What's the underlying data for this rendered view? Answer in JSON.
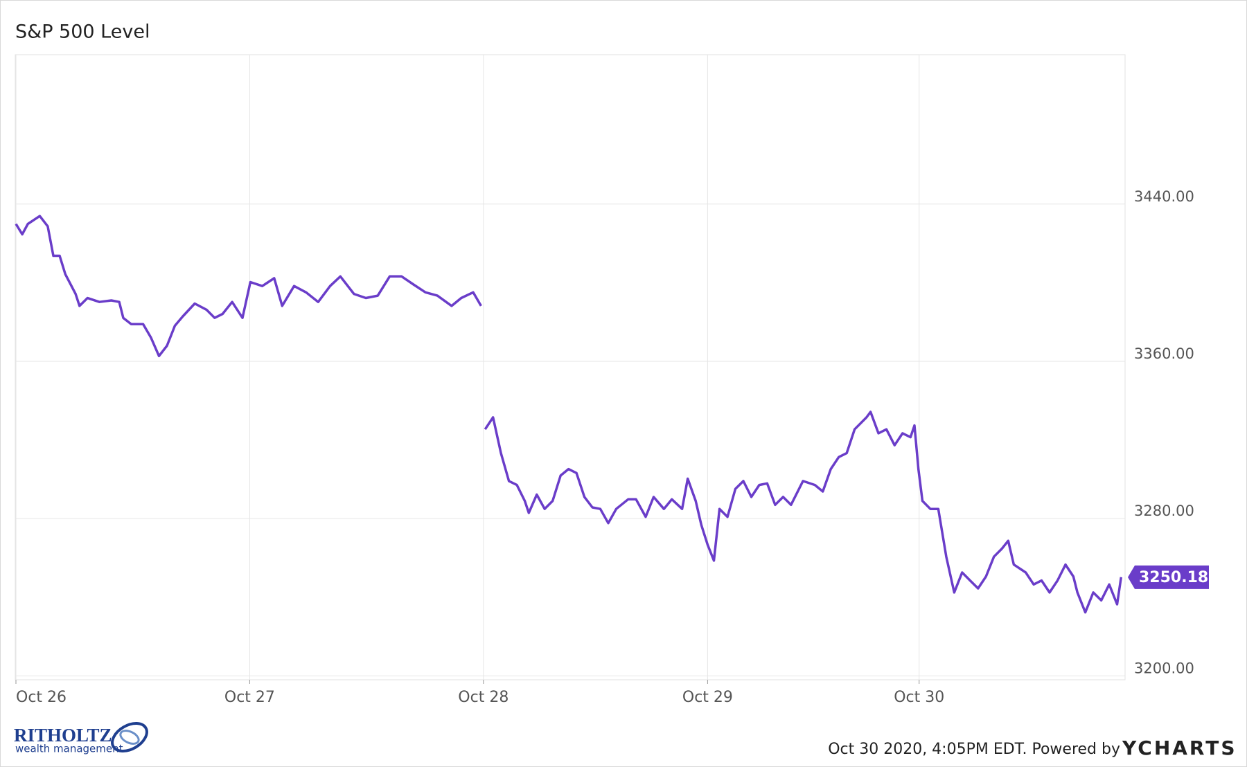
{
  "chart_data": {
    "type": "line",
    "title": "S&P 500 Level",
    "x": [
      0,
      0.027,
      0.051,
      0.102,
      0.136,
      0.16,
      0.187,
      0.211,
      0.255,
      0.272,
      0.306,
      0.357,
      0.408,
      0.442,
      0.459,
      0.493,
      0.544,
      0.578,
      0.612,
      0.646,
      0.68,
      0.714,
      0.765,
      0.816,
      0.85,
      0.884,
      0.925,
      0.969,
      1.003,
      1.054,
      1.105,
      1.139,
      1.19,
      1.241,
      1.293,
      1.344,
      1.388,
      1.446,
      1.497,
      1.548,
      1.599,
      1.65,
      1.701,
      1.752,
      1.803,
      1.864,
      1.905,
      1.956,
      1.99,
      2.0,
      2.007,
      2.041,
      2.075,
      2.109,
      2.143,
      2.177,
      2.194,
      2.228,
      2.262,
      2.296,
      2.33,
      2.364,
      2.398,
      2.432,
      2.466,
      2.5,
      2.534,
      2.568,
      2.619,
      2.653,
      2.694,
      2.728,
      2.772,
      2.806,
      2.85,
      2.874,
      2.908,
      2.932,
      2.959,
      2.986,
      3.01,
      3.044,
      3.078,
      3.112,
      3.146,
      3.18,
      3.214,
      3.248,
      3.282,
      3.316,
      3.367,
      3.418,
      3.452,
      3.486,
      3.52,
      3.554,
      3.588,
      3.639,
      3.656,
      3.69,
      3.724,
      3.759,
      3.793,
      3.827,
      3.844,
      3.861,
      3.878,
      3.912,
      3.946,
      3.98,
      4.014,
      4.048,
      4.082,
      4.116,
      4.15,
      4.184,
      4.218,
      4.245,
      4.269,
      4.32,
      4.354,
      4.388,
      4.422,
      4.456,
      4.49,
      4.524,
      4.541,
      4.575,
      4.609,
      4.643,
      4.677,
      4.711,
      4.728
    ],
    "series": [
      {
        "name": "S&P 500 Level",
        "color": "#6a3dc9",
        "values": [
          3429.9,
          3424.6,
          3429.9,
          3433.9,
          3428.7,
          3413.7,
          3413.7,
          3404.4,
          3394.3,
          3388.2,
          3392.2,
          3390.2,
          3391.0,
          3390.2,
          3382.1,
          3378.9,
          3378.9,
          3372.0,
          3362.7,
          3367.9,
          3378.1,
          3382.9,
          3389.4,
          3386.2,
          3382.1,
          3384.1,
          3390.2,
          3382.1,
          3400.3,
          3398.3,
          3402.3,
          3388.2,
          3398.3,
          3395.1,
          3390.2,
          3398.3,
          3403.2,
          3394.3,
          3392.2,
          3393.4,
          3403.2,
          3403.2,
          3399.1,
          3395.1,
          3393.4,
          3388.2,
          3392.2,
          3395.1,
          3388.2,
          null,
          3325.4,
          3331.5,
          3313.3,
          3299.1,
          3297.1,
          3289.0,
          3282.9,
          3292.2,
          3284.9,
          3289.0,
          3301.9,
          3305.2,
          3303.2,
          3291.0,
          3285.7,
          3284.9,
          3277.7,
          3284.9,
          3289.8,
          3289.8,
          3280.9,
          3291.0,
          3284.9,
          3289.8,
          3284.9,
          3300.3,
          3289.0,
          3276.8,
          3266.7,
          3258.6,
          3284.9,
          3280.9,
          3295.1,
          3299.1,
          3291.0,
          3297.1,
          3297.9,
          3287.0,
          3291.0,
          3287.0,
          3299.1,
          3297.1,
          3293.8,
          3305.2,
          3311.3,
          3313.3,
          3325.4,
          3331.5,
          3334.3,
          3323.4,
          3325.4,
          3317.3,
          3323.4,
          3321.4,
          3327.4,
          3305.2,
          3289.0,
          3284.9,
          3284.9,
          3260.6,
          3242.4,
          3252.6,
          3248.5,
          3244.5,
          3250.5,
          3260.6,
          3264.7,
          3268.7,
          3256.6,
          3252.6,
          3246.5,
          3248.5,
          3242.4,
          3248.5,
          3256.6,
          3250.5,
          3242.4,
          3232.3,
          3242.4,
          3238.4,
          3246.5,
          3236.4,
          3250.18
        ]
      }
    ],
    "xlim": [
      -0.003,
      4.745
    ],
    "xticks": [
      {
        "value": 0,
        "label": "Oct 26"
      },
      {
        "value": 1.0,
        "label": "Oct 27"
      },
      {
        "value": 2.0,
        "label": "Oct 28"
      },
      {
        "value": 2.959,
        "label": "Oct 29"
      },
      {
        "value": 3.864,
        "label": "Oct 30"
      }
    ],
    "ylim": [
      3198,
      3516
    ],
    "yticks": [
      {
        "value": 3200,
        "label": "3200.00"
      },
      {
        "value": 3280,
        "label": "3280.00"
      },
      {
        "value": 3360,
        "label": "3360.00"
      },
      {
        "value": 3440,
        "label": "3440.00"
      }
    ],
    "grid": true,
    "footer": {
      "timestamp": "Oct 30 2020, 4:05PM EDT. Powered by",
      "brand": "YCHARTS"
    },
    "logo": {
      "name": "RITHOLTZ",
      "tagline": "wealth management"
    }
  }
}
